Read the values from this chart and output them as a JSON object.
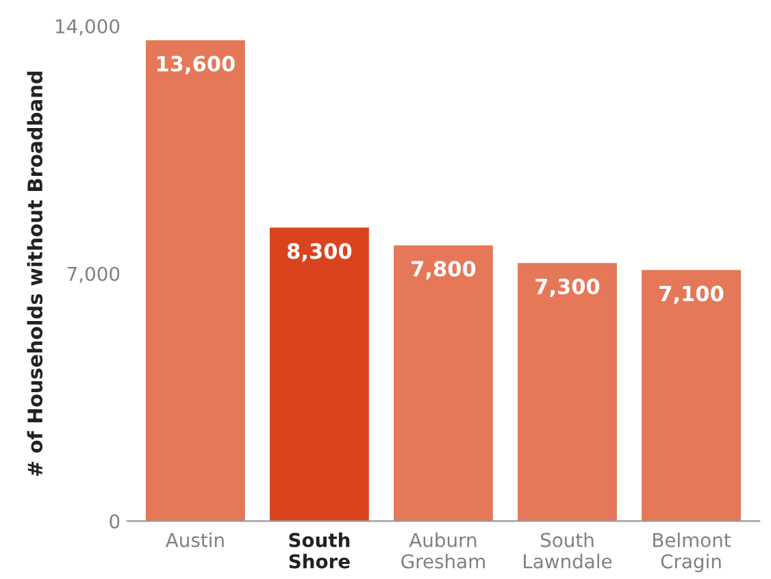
{
  "chart_data": {
    "type": "bar",
    "ylabel": "# of Households without Broadband",
    "categories": [
      "Austin",
      "South\nShore",
      "Auburn\nGresham",
      "South\nLawndale",
      "Belmont\nCragin"
    ],
    "values": [
      13600,
      8300,
      7800,
      7300,
      7100
    ],
    "value_labels": [
      "13,600",
      "8,300",
      "7,800",
      "7,300",
      "7,100"
    ],
    "colors": [
      "#e57858",
      "#d9441f",
      "#e57858",
      "#e57858",
      "#e57858"
    ],
    "ylim": [
      0,
      14000
    ],
    "yticks": [
      {
        "value": 0,
        "label": "0"
      },
      {
        "value": 7000,
        "label": "7,000"
      },
      {
        "value": 14000,
        "label": "14,000"
      }
    ],
    "grid": false,
    "legend": false
  }
}
